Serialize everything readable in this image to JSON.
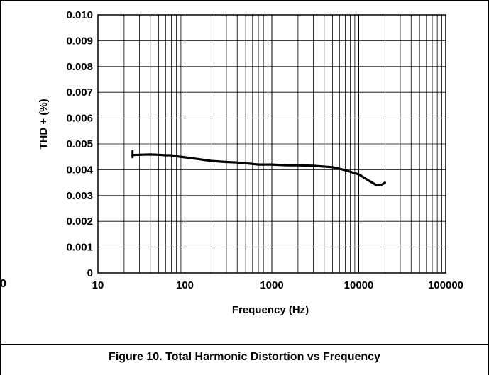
{
  "caption": "Figure 10. Total Harmonic Distortion vs Frequency",
  "edge_fragment": "0",
  "chart_data": {
    "type": "line",
    "xlabel": "Frequency (Hz)",
    "ylabel": "THD + (%)",
    "x_scale": "log",
    "xlim": [
      10,
      100000
    ],
    "ylim": [
      0,
      0.01
    ],
    "x_ticks": [
      "10",
      "100",
      "1000",
      "10000",
      "100000"
    ],
    "y_ticks": [
      "0",
      "0.001",
      "0.002",
      "0.003",
      "0.004",
      "0.005",
      "0.006",
      "0.007",
      "0.008",
      "0.009",
      "0.010"
    ],
    "grid": true,
    "series_color": "#000000",
    "series": [
      {
        "x": [
          25,
          30,
          40,
          50,
          60,
          70,
          80,
          100,
          150,
          200,
          300,
          400,
          500,
          700,
          1000,
          1500,
          2000,
          3000,
          5000,
          7000,
          10000,
          13000,
          16000,
          18000,
          20000
        ],
        "values": [
          0.00457,
          0.00458,
          0.00459,
          0.00458,
          0.00456,
          0.00456,
          0.00452,
          0.00448,
          0.0044,
          0.00434,
          0.0043,
          0.00428,
          0.00425,
          0.0042,
          0.0042,
          0.00417,
          0.00417,
          0.00415,
          0.0041,
          0.00398,
          0.00382,
          0.00358,
          0.0034,
          0.0034,
          0.0035
        ]
      }
    ],
    "low_freq_spike": {
      "x": 25,
      "from": 0.00448,
      "to": 0.00472
    }
  }
}
